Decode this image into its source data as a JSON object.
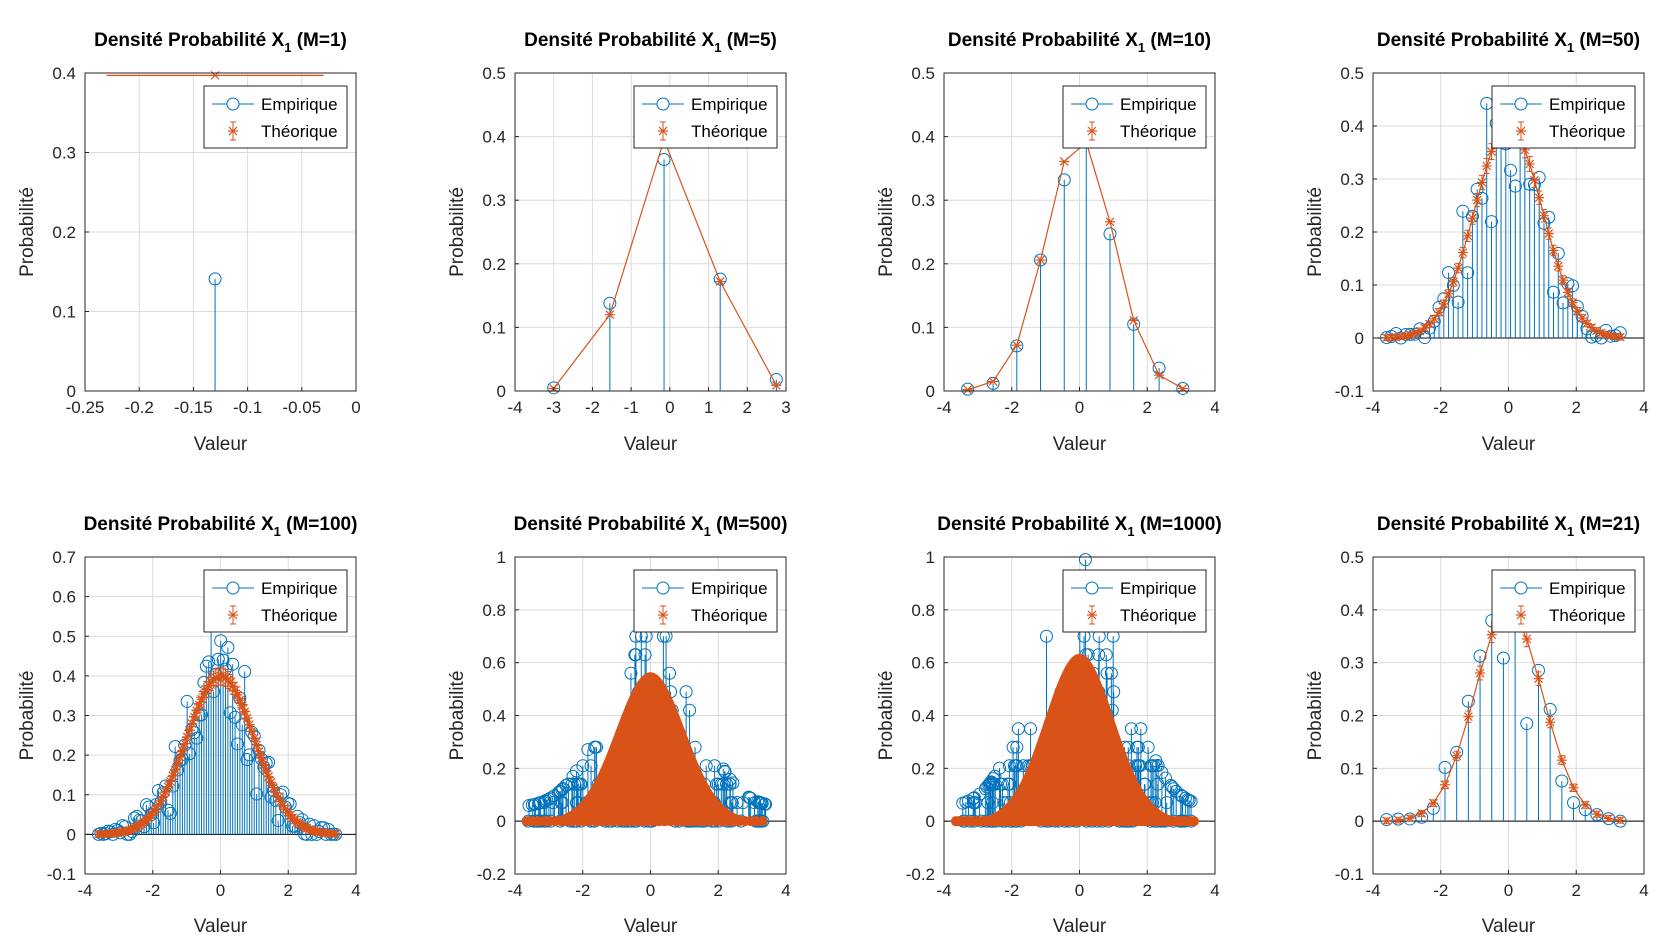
{
  "figure": {
    "colors": {
      "empirique": "#0072BD",
      "theorique": "#D95319",
      "grid": "#dcdcdc",
      "axis": "#262626"
    }
  },
  "chart_data": [
    {
      "type": "stem",
      "title": "Densité Probabilité X",
      "title_sub": "1",
      "title_suffix": " (M=1)",
      "xlabel": "Valeur",
      "ylabel": "Probabilité",
      "xlim": [
        -0.25,
        0
      ],
      "ylim": [
        0,
        0.4
      ],
      "xticks": [
        -0.25,
        -0.2,
        -0.15,
        -0.1,
        -0.05,
        0
      ],
      "xtick_labels": [
        "-0.25",
        "-0.2",
        "-0.15",
        "-0.1",
        "-0.05",
        "0"
      ],
      "yticks": [
        0,
        0.1,
        0.2,
        0.3,
        0.4
      ],
      "ytick_labels": [
        "0",
        "0.1",
        "0.2",
        "0.3",
        "0.4"
      ],
      "grid": true,
      "legend": "top-right",
      "series": [
        {
          "name": "Empirique",
          "kind": "stem",
          "x": [
            -0.13
          ],
          "y": [
            0.141
          ]
        },
        {
          "name": "Théorique",
          "kind": "line",
          "x": [
            -0.23,
            -0.13,
            -0.03
          ],
          "y": [
            0.397,
            0.397,
            0.397
          ],
          "marked": [
            false,
            true,
            false
          ]
        }
      ]
    },
    {
      "type": "stem",
      "title": "Densité Probabilité X",
      "title_sub": "1",
      "title_suffix": " (M=5)",
      "xlabel": "Valeur",
      "ylabel": "Probabilité",
      "xlim": [
        -4,
        3
      ],
      "ylim": [
        0,
        0.5
      ],
      "xticks": [
        -4,
        -3,
        -2,
        -1,
        0,
        1,
        2,
        3
      ],
      "xtick_labels": [
        "-4",
        "-3",
        "-2",
        "-1",
        "0",
        "1",
        "2",
        "3"
      ],
      "yticks": [
        0,
        0.1,
        0.2,
        0.3,
        0.4,
        0.5
      ],
      "ytick_labels": [
        "0",
        "0.1",
        "0.2",
        "0.3",
        "0.4",
        "0.5"
      ],
      "grid": true,
      "legend": "top-right",
      "series": [
        {
          "name": "Empirique",
          "kind": "stem",
          "x": [
            -3.0,
            -1.55,
            -0.15,
            1.3,
            2.75
          ],
          "y": [
            0.005,
            0.138,
            0.364,
            0.176,
            0.018
          ]
        },
        {
          "name": "Théorique",
          "kind": "line",
          "x": [
            -3.0,
            -1.55,
            -0.15,
            1.3,
            2.75
          ],
          "y": [
            0.004,
            0.12,
            0.395,
            0.172,
            0.009
          ]
        }
      ]
    },
    {
      "type": "stem",
      "title": "Densité Probabilité X",
      "title_sub": "1",
      "title_suffix": " (M=10)",
      "xlabel": "Valeur",
      "ylabel": "Probabilité",
      "xlim": [
        -4,
        4
      ],
      "ylim": [
        0,
        0.5
      ],
      "xticks": [
        -4,
        -2,
        0,
        2,
        4
      ],
      "xtick_labels": [
        "-4",
        "-2",
        "0",
        "2",
        "4"
      ],
      "yticks": [
        0,
        0.1,
        0.2,
        0.3,
        0.4,
        0.5
      ],
      "ytick_labels": [
        "0",
        "0.1",
        "0.2",
        "0.3",
        "0.4",
        "0.5"
      ],
      "grid": true,
      "legend": "top-right",
      "series": [
        {
          "name": "Empirique",
          "kind": "stem",
          "x": [
            -3.3,
            -2.55,
            -1.85,
            -1.15,
            -0.45,
            0.2,
            0.9,
            1.6,
            2.35,
            3.05
          ],
          "y": [
            0.003,
            0.012,
            0.071,
            0.206,
            0.332,
            0.418,
            0.247,
            0.105,
            0.036,
            0.004
          ]
        },
        {
          "name": "Théorique",
          "kind": "line",
          "x": [
            -3.3,
            -2.55,
            -1.85,
            -1.15,
            -0.45,
            0.2,
            0.9,
            1.6,
            2.35,
            3.05
          ],
          "y": [
            0.002,
            0.015,
            0.072,
            0.206,
            0.361,
            0.391,
            0.266,
            0.111,
            0.025,
            0.004
          ]
        }
      ]
    },
    {
      "type": "stem",
      "title": "Densité Probabilité X",
      "title_sub": "1",
      "title_suffix": " (M=50)",
      "xlabel": "Valeur",
      "ylabel": "Probabilité",
      "xlim": [
        -4,
        4
      ],
      "ylim": [
        -0.1,
        0.5
      ],
      "xticks": [
        -4,
        -2,
        0,
        2,
        4
      ],
      "xtick_labels": [
        "-4",
        "-2",
        "0",
        "2",
        "4"
      ],
      "yticks": [
        -0.1,
        0,
        0.1,
        0.2,
        0.3,
        0.4,
        0.5
      ],
      "ytick_labels": [
        "-0.1",
        "0",
        "0.1",
        "0.2",
        "0.3",
        "0.4",
        "0.5"
      ],
      "grid": true,
      "legend": "top-right",
      "gen": {
        "n": 50,
        "xmin": -3.6,
        "xmax": 3.3,
        "seed": 11,
        "noise": 0.07
      },
      "series": [
        {
          "name": "Empirique",
          "kind": "stem"
        },
        {
          "name": "Théorique",
          "kind": "line",
          "errorbars": true
        }
      ]
    },
    {
      "type": "stem",
      "title": "Densité Probabilité X",
      "title_sub": "1",
      "title_suffix": " (M=100)",
      "xlabel": "Valeur",
      "ylabel": "Probabilité",
      "xlim": [
        -4,
        4
      ],
      "ylim": [
        -0.1,
        0.7
      ],
      "xticks": [
        -4,
        -2,
        0,
        2,
        4
      ],
      "xtick_labels": [
        "-4",
        "-2",
        "0",
        "2",
        "4"
      ],
      "yticks": [
        -0.1,
        0,
        0.1,
        0.2,
        0.3,
        0.4,
        0.5,
        0.6,
        0.7
      ],
      "ytick_labels": [
        "-0.1",
        "0",
        "0.1",
        "0.2",
        "0.3",
        "0.4",
        "0.5",
        "0.6",
        "0.7"
      ],
      "grid": true,
      "legend": "top-right",
      "gen": {
        "n": 100,
        "xmin": -3.6,
        "xmax": 3.4,
        "seed": 23,
        "noise": 0.08
      },
      "series": [
        {
          "name": "Empirique",
          "kind": "stem"
        },
        {
          "name": "Théorique",
          "kind": "line",
          "errorbars": true
        }
      ]
    },
    {
      "type": "stem",
      "title": "Densité Probabilité X",
      "title_sub": "1",
      "title_suffix": " (M=500)",
      "xlabel": "Valeur",
      "ylabel": "Probabilité",
      "xlim": [
        -4,
        4
      ],
      "ylim": [
        -0.2,
        1
      ],
      "xticks": [
        -4,
        -2,
        0,
        2,
        4
      ],
      "xtick_labels": [
        "-4",
        "-2",
        "0",
        "2",
        "4"
      ],
      "yticks": [
        -0.2,
        0,
        0.2,
        0.4,
        0.6,
        0.8,
        1
      ],
      "ytick_labels": [
        "-0.2",
        "0",
        "0.2",
        "0.4",
        "0.6",
        "0.8",
        "1"
      ],
      "grid": true,
      "legend": "top-right",
      "gen": {
        "n": 500,
        "xmin": -3.65,
        "xmax": 3.4,
        "seed": 37,
        "dense": true,
        "peak": 0.56,
        "blue_peak": 0.22,
        "spike_max": 0.7
      },
      "series": [
        {
          "name": "Empirique",
          "kind": "stem"
        },
        {
          "name": "Théorique",
          "kind": "line",
          "errorbars": true
        }
      ]
    },
    {
      "type": "stem",
      "title": "Densité Probabilité X",
      "title_sub": "1",
      "title_suffix": " (M=1000)",
      "xlabel": "Valeur",
      "ylabel": "Probabilité",
      "xlim": [
        -4,
        4
      ],
      "ylim": [
        -0.2,
        1
      ],
      "xticks": [
        -4,
        -2,
        0,
        2,
        4
      ],
      "xtick_labels": [
        "-4",
        "-2",
        "0",
        "2",
        "4"
      ],
      "yticks": [
        -0.2,
        0,
        0.2,
        0.4,
        0.6,
        0.8,
        1
      ],
      "ytick_labels": [
        "-0.2",
        "0",
        "0.2",
        "0.4",
        "0.6",
        "0.8",
        "1"
      ],
      "grid": true,
      "legend": "top-right",
      "gen": {
        "n": 1000,
        "xmin": -3.65,
        "xmax": 3.4,
        "seed": 53,
        "dense": true,
        "peak": 0.63,
        "blue_peak": 0.155,
        "spike_max": 0.99
      },
      "series": [
        {
          "name": "Empirique",
          "kind": "stem"
        },
        {
          "name": "Théorique",
          "kind": "line",
          "errorbars": true
        }
      ]
    },
    {
      "type": "stem",
      "title": "Densité Probabilité X",
      "title_sub": "1",
      "title_suffix": " (M=21)",
      "xlabel": "Valeur",
      "ylabel": "Probabilité",
      "xlim": [
        -4,
        4
      ],
      "ylim": [
        -0.1,
        0.5
      ],
      "xticks": [
        -4,
        -2,
        0,
        2,
        4
      ],
      "xtick_labels": [
        "-4",
        "-2",
        "0",
        "2",
        "4"
      ],
      "yticks": [
        -0.1,
        0,
        0.1,
        0.2,
        0.3,
        0.4,
        0.5
      ],
      "ytick_labels": [
        "-0.1",
        "0",
        "0.1",
        "0.2",
        "0.3",
        "0.4",
        "0.5"
      ],
      "grid": true,
      "legend": "top-right",
      "gen": {
        "n": 21,
        "xmin": -3.6,
        "xmax": 3.3,
        "seed": 71,
        "noise": 0.05
      },
      "series": [
        {
          "name": "Empirique",
          "kind": "stem"
        },
        {
          "name": "Théorique",
          "kind": "line",
          "errorbars": true
        }
      ]
    }
  ]
}
